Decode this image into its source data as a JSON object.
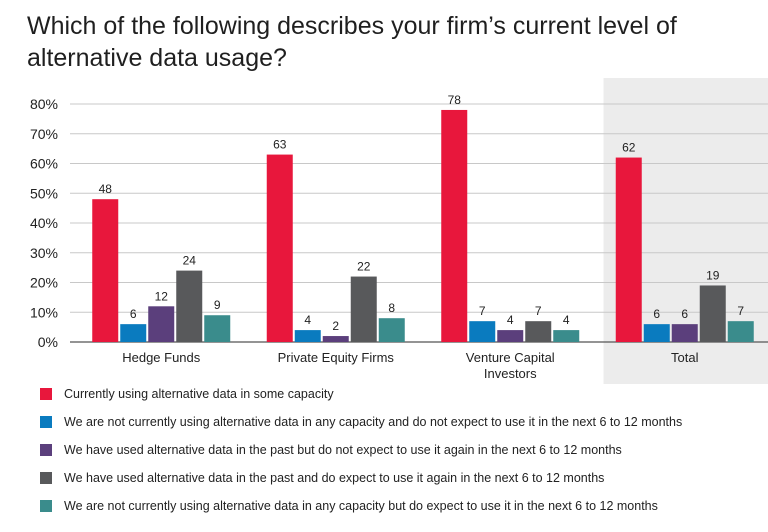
{
  "title": "Which of the following describes your firm’s current level of alternative data usage?",
  "chart_data": {
    "type": "bar",
    "title": "Which of the following describes your firm’s current level of alternative data usage?",
    "xlabel": "",
    "ylabel": "",
    "ylim": [
      0,
      80
    ],
    "y_ticks": [
      "0%",
      "10%",
      "20%",
      "30%",
      "40%",
      "50%",
      "60%",
      "70%",
      "80%"
    ],
    "grid": true,
    "highlighted_category": "Total",
    "categories": [
      "Hedge Funds",
      "Private Equity Firms",
      "Venture Capital Investors",
      "Total"
    ],
    "category_labels": [
      [
        "Hedge Funds"
      ],
      [
        "Private Equity Firms"
      ],
      [
        "Venture Capital",
        "Investors"
      ],
      [
        "Total"
      ]
    ],
    "series": [
      {
        "name": "Currently using alternative data in some capacity",
        "color": "#e8173c",
        "values": [
          48,
          63,
          78,
          62
        ]
      },
      {
        "name": "We are not currently using alternative data in any capacity and do not expect to use it in the next 6 to 12 months",
        "color": "#0a7bbf",
        "values": [
          6,
          4,
          7,
          6
        ]
      },
      {
        "name": "We have used alternative data in the past but do not expect to use it again in the next 6 to 12 months",
        "color": "#5b3f7c",
        "values": [
          12,
          2,
          4,
          6
        ]
      },
      {
        "name": "We have used alternative data in the past and do expect to use it again in the next 6 to 12 months",
        "color": "#58595b",
        "values": [
          24,
          22,
          7,
          19
        ]
      },
      {
        "name": "We are not currently using alternative data in any capacity but do expect to use it in the next 6 to 12 months",
        "color": "#3a8c8c",
        "values": [
          9,
          8,
          4,
          7
        ]
      }
    ]
  }
}
